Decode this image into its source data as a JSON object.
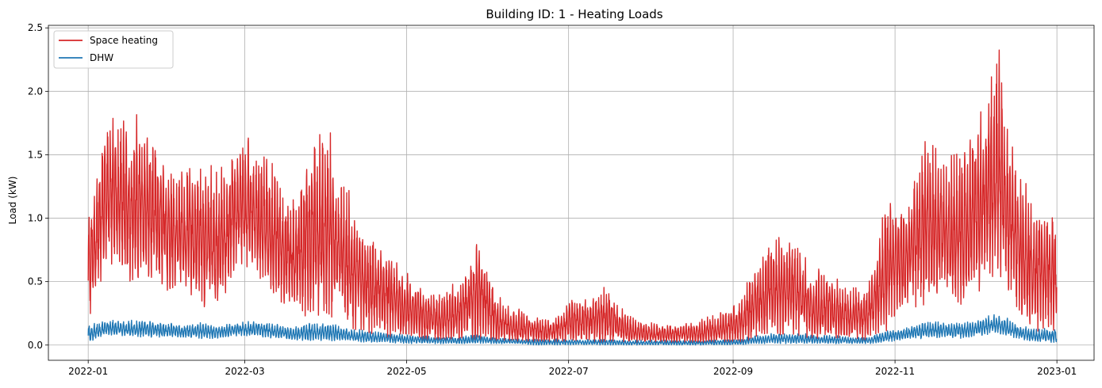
{
  "chart_data": {
    "type": "line",
    "title": "Building ID: 1 - Heating Loads",
    "xlabel": "",
    "ylabel": "Load (kW)",
    "x_range": [
      "2021-12-17",
      "2023-01-15"
    ],
    "ylim": [
      -0.12,
      2.52
    ],
    "x_ticks": [
      "2022-01",
      "2022-03",
      "2022-05",
      "2022-07",
      "2022-09",
      "2022-11",
      "2023-01"
    ],
    "y_ticks": [
      0.0,
      0.5,
      1.0,
      1.5,
      2.0,
      2.5
    ],
    "y_tick_labels": [
      "0.0",
      "0.5",
      "1.0",
      "1.5",
      "2.0",
      "2.5"
    ],
    "grid": true,
    "legend_position": "top-left",
    "series": [
      {
        "name": "Space heating",
        "color": "#d62728",
        "sampling": "hourly",
        "start": "2022-01-01",
        "end": "2022-12-31",
        "envelope_by_week": {
          "week_start": [
            "2022-01-01",
            "2022-01-08",
            "2022-01-15",
            "2022-01-22",
            "2022-01-29",
            "2022-02-05",
            "2022-02-12",
            "2022-02-19",
            "2022-02-26",
            "2022-03-05",
            "2022-03-12",
            "2022-03-19",
            "2022-03-26",
            "2022-04-02",
            "2022-04-09",
            "2022-04-16",
            "2022-04-23",
            "2022-04-30",
            "2022-05-07",
            "2022-05-14",
            "2022-05-21",
            "2022-05-28",
            "2022-06-04",
            "2022-06-11",
            "2022-06-18",
            "2022-06-25",
            "2022-07-02",
            "2022-07-09",
            "2022-07-16",
            "2022-07-23",
            "2022-07-30",
            "2022-08-06",
            "2022-08-13",
            "2022-08-20",
            "2022-08-27",
            "2022-09-03",
            "2022-09-10",
            "2022-09-17",
            "2022-09-24",
            "2022-10-01",
            "2022-10-08",
            "2022-10-15",
            "2022-10-22",
            "2022-10-29",
            "2022-11-05",
            "2022-11-12",
            "2022-11-19",
            "2022-11-26",
            "2022-12-03",
            "2022-12-10",
            "2022-12-17",
            "2022-12-24"
          ],
          "max": [
            1.1,
            1.95,
            1.85,
            1.9,
            1.65,
            1.45,
            1.6,
            1.45,
            1.7,
            1.7,
            1.5,
            1.2,
            1.8,
            1.8,
            1.3,
            0.95,
            0.85,
            0.65,
            0.5,
            0.45,
            0.55,
            0.92,
            0.42,
            0.32,
            0.26,
            0.22,
            0.44,
            0.4,
            0.5,
            0.25,
            0.2,
            0.18,
            0.19,
            0.22,
            0.27,
            0.35,
            0.75,
            0.97,
            0.95,
            0.65,
            0.62,
            0.48,
            0.5,
            1.3,
            1.2,
            1.8,
            1.55,
            1.65,
            1.95,
            2.4,
            1.55,
            1.2
          ],
          "min": [
            0.15,
            0.65,
            0.5,
            0.45,
            0.4,
            0.45,
            0.3,
            0.25,
            0.6,
            0.55,
            0.35,
            0.25,
            0.2,
            0.2,
            0.1,
            0.08,
            0.05,
            0.03,
            0.02,
            0.02,
            0.02,
            0.02,
            0.01,
            0.01,
            0.01,
            0.01,
            0.01,
            0.01,
            0.01,
            0.01,
            0.01,
            0.01,
            0.01,
            0.01,
            0.01,
            0.01,
            0.03,
            0.05,
            0.05,
            0.03,
            0.03,
            0.03,
            0.03,
            0.1,
            0.25,
            0.3,
            0.35,
            0.3,
            0.4,
            0.55,
            0.25,
            0.1
          ]
        }
      },
      {
        "name": "DHW",
        "color": "#1f77b4",
        "sampling": "hourly",
        "start": "2022-01-01",
        "end": "2022-12-31",
        "envelope_by_week": {
          "week_start": [
            "2022-01-01",
            "2022-01-08",
            "2022-01-15",
            "2022-01-22",
            "2022-01-29",
            "2022-02-05",
            "2022-02-12",
            "2022-02-19",
            "2022-02-26",
            "2022-03-05",
            "2022-03-12",
            "2022-03-19",
            "2022-03-26",
            "2022-04-02",
            "2022-04-09",
            "2022-04-16",
            "2022-04-23",
            "2022-04-30",
            "2022-05-07",
            "2022-05-14",
            "2022-05-21",
            "2022-05-28",
            "2022-06-04",
            "2022-06-11",
            "2022-06-18",
            "2022-06-25",
            "2022-07-02",
            "2022-07-09",
            "2022-07-16",
            "2022-07-23",
            "2022-07-30",
            "2022-08-06",
            "2022-08-13",
            "2022-08-20",
            "2022-08-27",
            "2022-09-03",
            "2022-09-10",
            "2022-09-17",
            "2022-09-24",
            "2022-10-01",
            "2022-10-08",
            "2022-10-15",
            "2022-10-22",
            "2022-10-29",
            "2022-11-05",
            "2022-11-12",
            "2022-11-19",
            "2022-11-26",
            "2022-12-03",
            "2022-12-10",
            "2022-12-17",
            "2022-12-24"
          ],
          "max": [
            0.17,
            0.2,
            0.2,
            0.21,
            0.19,
            0.17,
            0.19,
            0.17,
            0.19,
            0.2,
            0.18,
            0.15,
            0.19,
            0.19,
            0.14,
            0.12,
            0.11,
            0.09,
            0.08,
            0.07,
            0.07,
            0.09,
            0.06,
            0.05,
            0.05,
            0.05,
            0.05,
            0.05,
            0.05,
            0.04,
            0.04,
            0.04,
            0.04,
            0.04,
            0.05,
            0.05,
            0.08,
            0.1,
            0.1,
            0.09,
            0.08,
            0.07,
            0.07,
            0.13,
            0.15,
            0.2,
            0.19,
            0.19,
            0.22,
            0.27,
            0.17,
            0.14
          ],
          "min": [
            0.02,
            0.08,
            0.07,
            0.06,
            0.06,
            0.06,
            0.05,
            0.05,
            0.07,
            0.07,
            0.05,
            0.04,
            0.03,
            0.03,
            0.03,
            0.02,
            0.02,
            0.01,
            0.01,
            0.01,
            0.01,
            0.01,
            0.01,
            0.01,
            0.0,
            0.0,
            0.0,
            0.0,
            0.0,
            0.0,
            0.0,
            0.0,
            0.0,
            0.0,
            0.0,
            0.0,
            0.01,
            0.01,
            0.01,
            0.01,
            0.01,
            0.01,
            0.01,
            0.02,
            0.04,
            0.05,
            0.06,
            0.05,
            0.07,
            0.09,
            0.05,
            0.02
          ]
        }
      }
    ]
  }
}
